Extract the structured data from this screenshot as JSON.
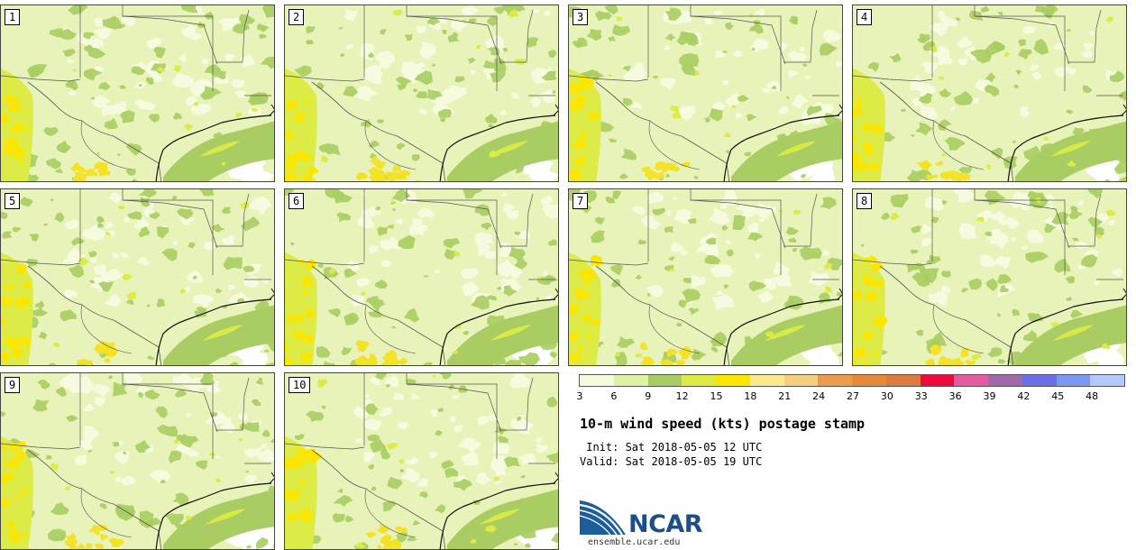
{
  "panels": [
    {
      "label": "1"
    },
    {
      "label": "2"
    },
    {
      "label": "3"
    },
    {
      "label": "4"
    },
    {
      "label": "5"
    },
    {
      "label": "6"
    },
    {
      "label": "7"
    },
    {
      "label": "8"
    },
    {
      "label": "9"
    },
    {
      "label": "10"
    }
  ],
  "colorbar": {
    "colors": [
      "#f5fadc",
      "#dff1a6",
      "#a8cc63",
      "#dceb45",
      "#fce600",
      "#fceb8c",
      "#f6ce80",
      "#ec9b4c",
      "#e48a38",
      "#dc7a42",
      "#ed0a3c",
      "#e55c9e",
      "#a06aa8",
      "#6a6fe8",
      "#7c98f0",
      "#b4c9f8"
    ],
    "tick_labels": [
      "3",
      "6",
      "9",
      "12",
      "15",
      "18",
      "21",
      "24",
      "27",
      "30",
      "33",
      "36",
      "39",
      "42",
      "45",
      "48"
    ]
  },
  "title": "10-m wind speed (kts) postage stamp",
  "init": " Init: Sat 2018-05-05 12 UTC",
  "valid": "Valid: Sat 2018-05-05 19 UTC",
  "logo": {
    "word": "NCAR",
    "url": "ensemble.ucar.edu"
  }
}
